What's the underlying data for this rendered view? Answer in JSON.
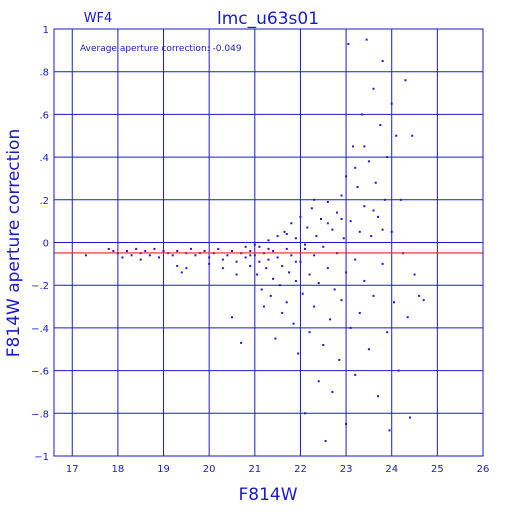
{
  "chart_data": {
    "type": "scatter",
    "title": "lmc_u63s01",
    "chip": "WF4",
    "annotation": "Average aperture correction: -0.049",
    "xlabel": "F814W",
    "ylabel": "F814W aperture correction",
    "xlim": [
      16.6,
      26.0
    ],
    "ylim": [
      -1.0,
      1.0
    ],
    "x_ticks": [
      17,
      18,
      19,
      20,
      21,
      22,
      23,
      24,
      25,
      26
    ],
    "y_ticks": [
      -1,
      -0.8,
      -0.6,
      -0.4,
      -0.2,
      0,
      0.2,
      0.4,
      0.6,
      0.8,
      1
    ],
    "grid": true,
    "average_line": -0.049,
    "zero_line": 0,
    "colors": {
      "axes": "#1a1acc",
      "points": "#1a1acc",
      "average_line": "#ee2222"
    },
    "points": [
      [
        17.3,
        -0.06
      ],
      [
        17.8,
        -0.03
      ],
      [
        17.9,
        -0.04
      ],
      [
        18.0,
        -0.05
      ],
      [
        18.1,
        -0.07
      ],
      [
        18.2,
        -0.04
      ],
      [
        18.3,
        -0.06
      ],
      [
        18.4,
        -0.03
      ],
      [
        18.5,
        -0.05
      ],
      [
        18.5,
        -0.08
      ],
      [
        18.6,
        -0.04
      ],
      [
        18.7,
        -0.06
      ],
      [
        18.8,
        -0.03
      ],
      [
        18.9,
        -0.07
      ],
      [
        19.0,
        -0.04
      ],
      [
        19.1,
        -0.05
      ],
      [
        19.2,
        -0.06
      ],
      [
        19.3,
        -0.11
      ],
      [
        19.3,
        -0.04
      ],
      [
        19.4,
        -0.14
      ],
      [
        19.5,
        -0.05
      ],
      [
        19.5,
        -0.12
      ],
      [
        19.6,
        -0.03
      ],
      [
        19.7,
        -0.06
      ],
      [
        19.8,
        -0.05
      ],
      [
        19.9,
        -0.04
      ],
      [
        20.0,
        -0.07
      ],
      [
        20.0,
        -0.1
      ],
      [
        20.1,
        -0.05
      ],
      [
        20.2,
        -0.03
      ],
      [
        20.3,
        -0.08
      ],
      [
        20.3,
        -0.12
      ],
      [
        20.4,
        -0.06
      ],
      [
        20.5,
        -0.35
      ],
      [
        20.5,
        -0.04
      ],
      [
        20.6,
        -0.09
      ],
      [
        20.6,
        -0.15
      ],
      [
        20.7,
        -0.05
      ],
      [
        20.7,
        -0.47
      ],
      [
        20.8,
        -0.07
      ],
      [
        20.8,
        -0.02
      ],
      [
        20.9,
        -0.11
      ],
      [
        20.9,
        -0.04
      ],
      [
        21.0,
        -0.06
      ],
      [
        21.0,
        -0.01
      ],
      [
        21.05,
        -0.15
      ],
      [
        21.1,
        -0.09
      ],
      [
        21.1,
        -0.02
      ],
      [
        21.15,
        -0.22
      ],
      [
        21.2,
        -0.05
      ],
      [
        21.2,
        -0.3
      ],
      [
        21.25,
        -0.12
      ],
      [
        21.3,
        0.01
      ],
      [
        21.3,
        -0.08
      ],
      [
        21.35,
        -0.25
      ],
      [
        21.4,
        -0.04
      ],
      [
        21.4,
        -0.17
      ],
      [
        21.45,
        -0.45
      ],
      [
        21.5,
        0.03
      ],
      [
        21.5,
        -0.07
      ],
      [
        21.55,
        -0.2
      ],
      [
        21.6,
        -0.11
      ],
      [
        21.6,
        -0.33
      ],
      [
        21.65,
        0.05
      ],
      [
        21.7,
        -0.03
      ],
      [
        21.7,
        -0.28
      ],
      [
        21.75,
        -0.14
      ],
      [
        21.8,
        0.09
      ],
      [
        21.8,
        -0.06
      ],
      [
        21.85,
        -0.38
      ],
      [
        21.9,
        -0.18
      ],
      [
        21.9,
        0.02
      ],
      [
        21.95,
        -0.52
      ],
      [
        22.0,
        -0.09
      ],
      [
        22.0,
        0.12
      ],
      [
        22.05,
        -0.24
      ],
      [
        22.1,
        -0.03
      ],
      [
        22.1,
        -0.8
      ],
      [
        22.15,
        0.07
      ],
      [
        22.2,
        -0.15
      ],
      [
        22.2,
        -0.42
      ],
      [
        22.25,
        0.16
      ],
      [
        22.3,
        -0.06
      ],
      [
        22.3,
        -0.3
      ],
      [
        22.35,
        0.03
      ],
      [
        22.4,
        -0.65
      ],
      [
        22.4,
        -0.19
      ],
      [
        22.45,
        0.11
      ],
      [
        22.5,
        -0.02
      ],
      [
        22.5,
        -0.48
      ],
      [
        22.55,
        -0.93
      ],
      [
        22.6,
        0.19
      ],
      [
        22.6,
        -0.12
      ],
      [
        22.65,
        -0.36
      ],
      [
        22.7,
        0.06
      ],
      [
        22.7,
        -0.7
      ],
      [
        22.75,
        -0.22
      ],
      [
        22.8,
        0.14
      ],
      [
        22.8,
        -0.05
      ],
      [
        22.85,
        -0.55
      ],
      [
        22.9,
        0.22
      ],
      [
        22.9,
        -0.27
      ],
      [
        22.95,
        0.02
      ],
      [
        23.0,
        -0.85
      ],
      [
        23.0,
        -0.14
      ],
      [
        23.0,
        0.31
      ],
      [
        23.05,
        0.93
      ],
      [
        23.1,
        -0.4
      ],
      [
        23.1,
        0.1
      ],
      [
        23.15,
        0.45
      ],
      [
        23.2,
        -0.62
      ],
      [
        23.2,
        -0.08
      ],
      [
        23.25,
        0.26
      ],
      [
        23.3,
        0.05
      ],
      [
        23.3,
        -0.33
      ],
      [
        23.35,
        0.6
      ],
      [
        23.4,
        -0.18
      ],
      [
        23.4,
        0.17
      ],
      [
        23.45,
        0.95
      ],
      [
        23.5,
        0.38
      ],
      [
        23.5,
        -0.5
      ],
      [
        23.55,
        0.03
      ],
      [
        23.6,
        0.72
      ],
      [
        23.6,
        -0.25
      ],
      [
        23.65,
        0.28
      ],
      [
        23.7,
        -0.72
      ],
      [
        23.7,
        0.12
      ],
      [
        23.75,
        0.55
      ],
      [
        23.8,
        -0.1
      ],
      [
        23.8,
        0.85
      ],
      [
        23.85,
        0.2
      ],
      [
        23.9,
        -0.42
      ],
      [
        23.9,
        0.4
      ],
      [
        23.95,
        -0.88
      ],
      [
        24.0,
        0.05
      ],
      [
        24.0,
        0.65
      ],
      [
        24.05,
        -0.28
      ],
      [
        24.1,
        0.5
      ],
      [
        24.15,
        -0.6
      ],
      [
        24.2,
        0.2
      ],
      [
        24.25,
        -0.05
      ],
      [
        24.3,
        0.76
      ],
      [
        24.35,
        -0.35
      ],
      [
        24.4,
        -0.82
      ],
      [
        24.45,
        0.5
      ],
      [
        24.5,
        -0.15
      ],
      [
        24.6,
        -0.25
      ],
      [
        24.7,
        -0.27
      ],
      [
        22.3,
        0.2
      ],
      [
        22.6,
        0.09
      ],
      [
        22.9,
        0.11
      ],
      [
        23.2,
        0.35
      ],
      [
        23.4,
        0.45
      ],
      [
        23.6,
        0.15
      ],
      [
        23.8,
        0.06
      ],
      [
        21.7,
        0.04
      ],
      [
        21.9,
        -0.09
      ],
      [
        22.1,
        -0.01
      ],
      [
        20.9,
        -0.06
      ],
      [
        21.3,
        -0.03
      ]
    ]
  }
}
